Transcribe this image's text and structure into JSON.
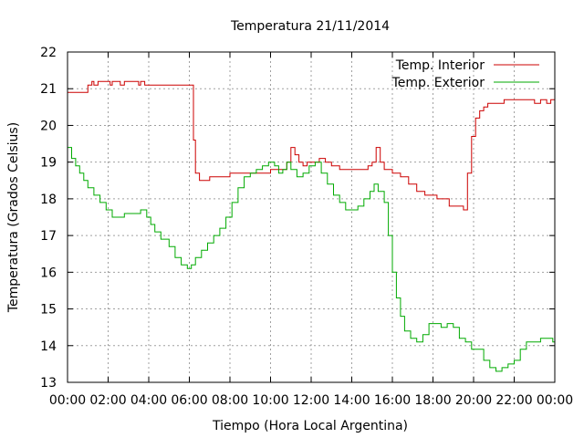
{
  "chart_data": {
    "type": "line",
    "title": "Temperatura 21/11/2014",
    "xlabel": "Tiempo (Hora Local Argentina)",
    "ylabel": "Temperatura (Grados Celsius)",
    "xlim": [
      0,
      24
    ],
    "ylim": [
      13,
      22
    ],
    "x_ticks": [
      {
        "value": 0,
        "label": "00:00"
      },
      {
        "value": 2,
        "label": "02:00"
      },
      {
        "value": 4,
        "label": "04:00"
      },
      {
        "value": 6,
        "label": "06:00"
      },
      {
        "value": 8,
        "label": "08:00"
      },
      {
        "value": 10,
        "label": "10:00"
      },
      {
        "value": 12,
        "label": "12:00"
      },
      {
        "value": 14,
        "label": "14:00"
      },
      {
        "value": 16,
        "label": "16:00"
      },
      {
        "value": 18,
        "label": "18:00"
      },
      {
        "value": 20,
        "label": "20:00"
      },
      {
        "value": 22,
        "label": "22:00"
      },
      {
        "value": 24,
        "label": "00:00"
      }
    ],
    "y_ticks": [
      13,
      14,
      15,
      16,
      17,
      18,
      19,
      20,
      21,
      22
    ],
    "grid": true,
    "legend_position": "top-right",
    "series": [
      {
        "name": "Temp. Interior",
        "color": "#cc0000",
        "x": [
          0,
          0.4,
          1.0,
          1.1,
          1.2,
          1.3,
          1.5,
          2.1,
          2.2,
          2.6,
          2.8,
          3.0,
          3.5,
          3.6,
          3.8,
          4.0,
          6.1,
          6.2,
          6.3,
          6.5,
          6.7,
          7.0,
          7.5,
          8.0,
          9.0,
          10.0,
          10.5,
          10.8,
          11.0,
          11.2,
          11.4,
          11.6,
          11.8,
          12.0,
          12.4,
          12.7,
          13.0,
          13.4,
          14.0,
          14.6,
          14.8,
          15.0,
          15.2,
          15.4,
          15.6,
          16.0,
          16.4,
          16.8,
          17.2,
          17.6,
          18.2,
          18.8,
          19.3,
          19.5,
          19.7,
          19.9,
          20.1,
          20.3,
          20.5,
          20.7,
          21.0,
          21.5,
          22.5,
          23.0,
          23.3,
          23.6,
          23.8,
          24.0
        ],
        "values": [
          20.9,
          20.9,
          21.1,
          21.1,
          21.2,
          21.1,
          21.2,
          21.1,
          21.2,
          21.1,
          21.2,
          21.2,
          21.1,
          21.2,
          21.1,
          21.1,
          21.1,
          19.6,
          18.7,
          18.5,
          18.5,
          18.6,
          18.6,
          18.7,
          18.7,
          18.8,
          18.8,
          19.0,
          19.4,
          19.2,
          19.0,
          18.9,
          19.0,
          19.0,
          19.1,
          19.0,
          18.9,
          18.8,
          18.8,
          18.8,
          18.9,
          19.0,
          19.4,
          19.0,
          18.8,
          18.7,
          18.6,
          18.4,
          18.2,
          18.1,
          18.0,
          17.8,
          17.8,
          17.7,
          18.7,
          19.7,
          20.2,
          20.4,
          20.5,
          20.6,
          20.6,
          20.7,
          20.7,
          20.6,
          20.7,
          20.6,
          20.7,
          20.7
        ]
      },
      {
        "name": "Temp. Exterior",
        "color": "#00aa00",
        "x": [
          0,
          0.2,
          0.4,
          0.6,
          0.8,
          1.0,
          1.3,
          1.6,
          1.9,
          2.2,
          2.5,
          2.8,
          3.2,
          3.6,
          3.9,
          4.1,
          4.3,
          4.6,
          5.0,
          5.3,
          5.6,
          5.9,
          6.1,
          6.3,
          6.6,
          6.9,
          7.2,
          7.5,
          7.8,
          8.1,
          8.4,
          8.7,
          9.0,
          9.3,
          9.6,
          9.9,
          10.2,
          10.4,
          10.6,
          10.8,
          11.0,
          11.3,
          11.6,
          11.9,
          12.2,
          12.5,
          12.8,
          13.1,
          13.4,
          13.7,
          14.0,
          14.3,
          14.6,
          14.9,
          15.1,
          15.3,
          15.6,
          15.8,
          16.0,
          16.2,
          16.4,
          16.6,
          16.9,
          17.2,
          17.5,
          17.8,
          18.1,
          18.4,
          18.7,
          19.0,
          19.3,
          19.6,
          19.9,
          20.2,
          20.5,
          20.8,
          21.1,
          21.4,
          21.7,
          22.0,
          22.3,
          22.6,
          23.0,
          23.3,
          23.6,
          23.9,
          24.0
        ],
        "values": [
          19.4,
          19.1,
          18.9,
          18.7,
          18.5,
          18.3,
          18.1,
          17.9,
          17.7,
          17.5,
          17.5,
          17.6,
          17.6,
          17.7,
          17.5,
          17.3,
          17.1,
          16.9,
          16.7,
          16.4,
          16.2,
          16.1,
          16.2,
          16.4,
          16.6,
          16.8,
          17.0,
          17.2,
          17.5,
          17.9,
          18.3,
          18.6,
          18.7,
          18.8,
          18.9,
          19.0,
          18.9,
          18.7,
          18.8,
          19.0,
          18.8,
          18.6,
          18.7,
          18.9,
          19.0,
          18.7,
          18.4,
          18.1,
          17.9,
          17.7,
          17.7,
          17.8,
          18.0,
          18.2,
          18.4,
          18.2,
          17.9,
          17.0,
          16.0,
          15.3,
          14.8,
          14.4,
          14.2,
          14.1,
          14.3,
          14.6,
          14.6,
          14.5,
          14.6,
          14.5,
          14.2,
          14.1,
          13.9,
          13.9,
          13.6,
          13.4,
          13.3,
          13.4,
          13.5,
          13.6,
          13.9,
          14.1,
          14.1,
          14.2,
          14.2,
          14.1,
          14.1
        ]
      }
    ]
  }
}
